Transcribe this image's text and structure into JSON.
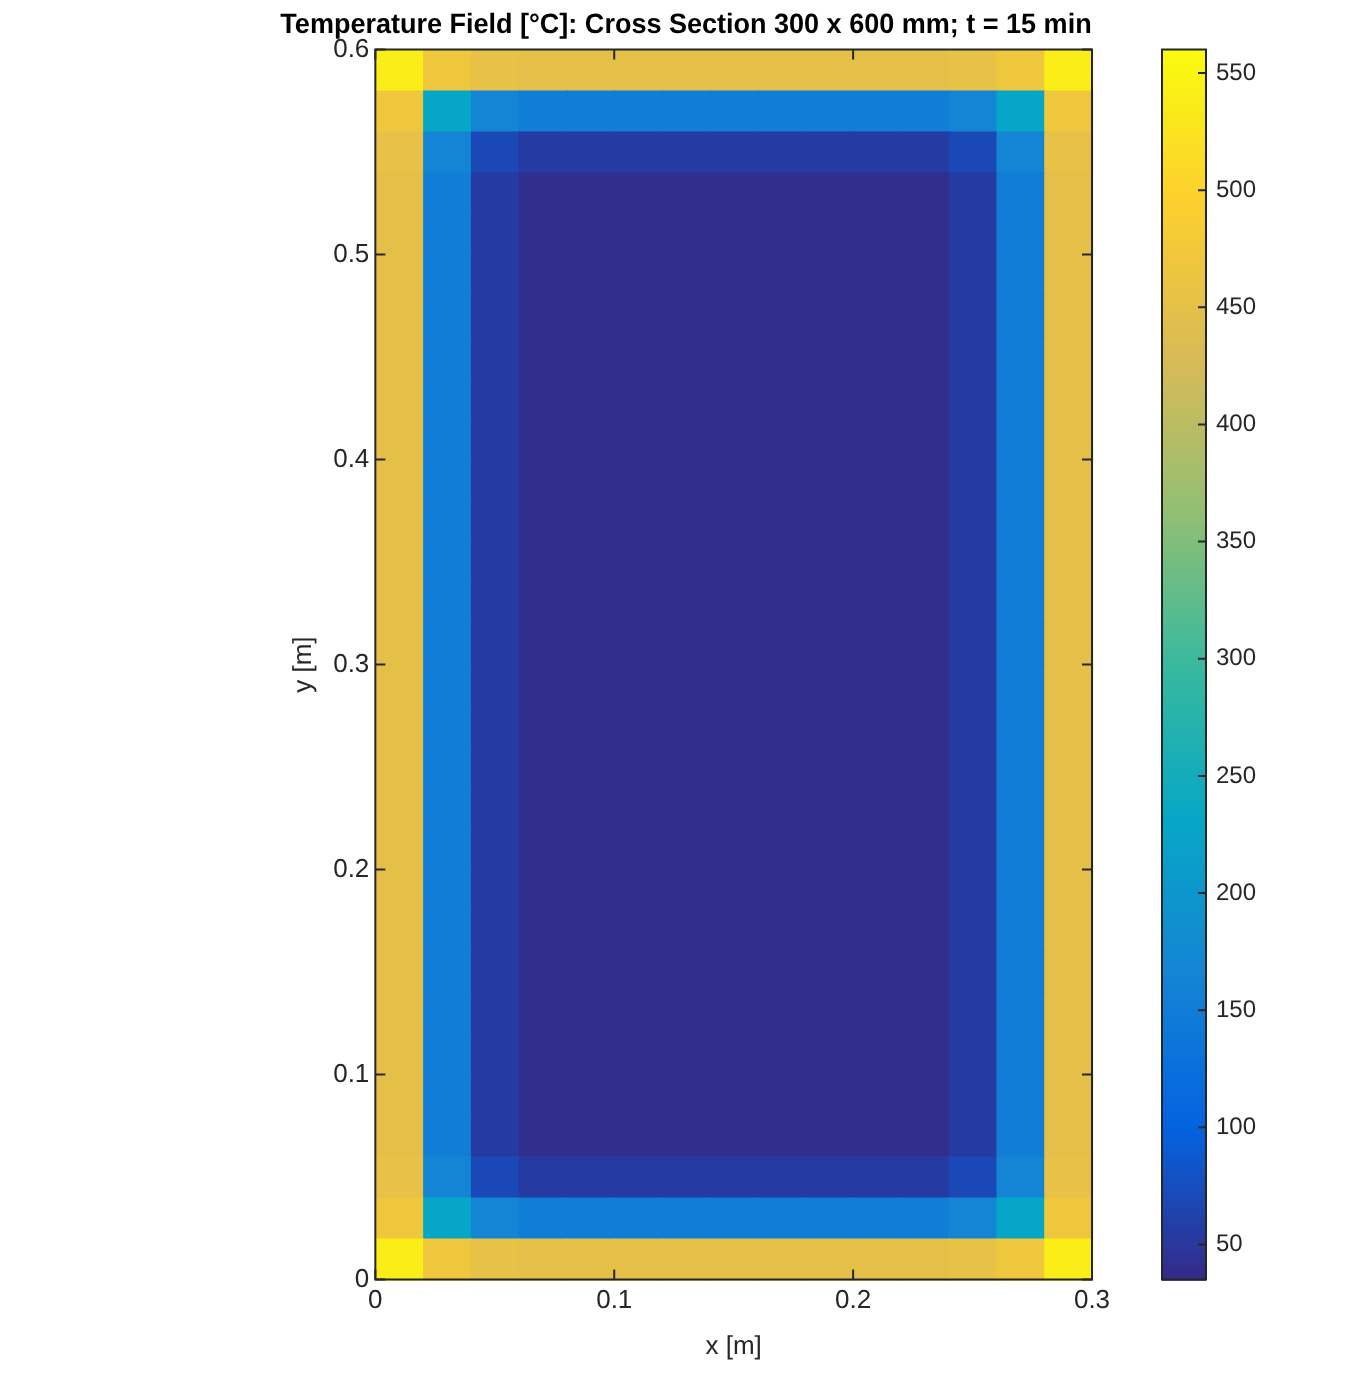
{
  "chart_data": {
    "type": "heatmap",
    "title": "Temperature Field [°C]: Cross Section 300 x 600 mm; t = 15 min",
    "xlabel": "x [m]",
    "ylabel": "y [m]",
    "x": [
      0.01,
      0.03,
      0.05,
      0.07,
      0.09,
      0.11,
      0.13,
      0.15,
      0.17,
      0.19,
      0.21,
      0.23,
      0.25,
      0.27,
      0.29
    ],
    "y": [
      0.59,
      0.57,
      0.55,
      0.53,
      0.51,
      0.49,
      0.47,
      0.45,
      0.43,
      0.41,
      0.39,
      0.37,
      0.35,
      0.33,
      0.31,
      0.29,
      0.27,
      0.25,
      0.23,
      0.21,
      0.19,
      0.17,
      0.15,
      0.13,
      0.11,
      0.09,
      0.07,
      0.05,
      0.03,
      0.01
    ],
    "xlim": [
      0,
      0.3
    ],
    "xticks": [
      0,
      0.1,
      0.2,
      0.3
    ],
    "ylim": [
      0,
      0.6
    ],
    "yticks": [
      0,
      0.1,
      0.2,
      0.3,
      0.4,
      0.5,
      0.6
    ],
    "clim": [
      35,
      560
    ],
    "cticks": [
      50,
      100,
      150,
      200,
      250,
      300,
      350,
      400,
      450,
      500,
      550
    ],
    "grid": false,
    "cells": [
      [
        540,
        470,
        455,
        450,
        450,
        450,
        450,
        450,
        450,
        450,
        450,
        450,
        455,
        470,
        540
      ],
      [
        470,
        230,
        165,
        150,
        150,
        150,
        150,
        150,
        150,
        150,
        150,
        150,
        165,
        230,
        470
      ],
      [
        455,
        165,
        70,
        55,
        55,
        55,
        55,
        55,
        55,
        55,
        55,
        55,
        70,
        165,
        455
      ],
      [
        450,
        150,
        55,
        40,
        40,
        40,
        40,
        40,
        40,
        40,
        40,
        40,
        55,
        150,
        450
      ],
      [
        450,
        150,
        55,
        40,
        40,
        40,
        40,
        40,
        40,
        40,
        40,
        40,
        55,
        150,
        450
      ],
      [
        450,
        150,
        55,
        40,
        40,
        40,
        40,
        40,
        40,
        40,
        40,
        40,
        55,
        150,
        450
      ],
      [
        450,
        150,
        55,
        40,
        40,
        40,
        40,
        40,
        40,
        40,
        40,
        40,
        55,
        150,
        450
      ],
      [
        450,
        150,
        55,
        40,
        40,
        40,
        40,
        40,
        40,
        40,
        40,
        40,
        55,
        150,
        450
      ],
      [
        450,
        150,
        55,
        40,
        40,
        40,
        40,
        40,
        40,
        40,
        40,
        40,
        55,
        150,
        450
      ],
      [
        450,
        150,
        55,
        40,
        40,
        40,
        40,
        40,
        40,
        40,
        40,
        40,
        55,
        150,
        450
      ],
      [
        450,
        150,
        55,
        40,
        40,
        40,
        40,
        40,
        40,
        40,
        40,
        40,
        55,
        150,
        450
      ],
      [
        450,
        150,
        55,
        40,
        40,
        40,
        40,
        40,
        40,
        40,
        40,
        40,
        55,
        150,
        450
      ],
      [
        450,
        150,
        55,
        40,
        40,
        40,
        40,
        40,
        40,
        40,
        40,
        40,
        55,
        150,
        450
      ],
      [
        450,
        150,
        55,
        40,
        40,
        40,
        40,
        40,
        40,
        40,
        40,
        40,
        55,
        150,
        450
      ],
      [
        450,
        150,
        55,
        40,
        40,
        40,
        40,
        40,
        40,
        40,
        40,
        40,
        55,
        150,
        450
      ],
      [
        450,
        150,
        55,
        40,
        40,
        40,
        40,
        40,
        40,
        40,
        40,
        40,
        55,
        150,
        450
      ],
      [
        450,
        150,
        55,
        40,
        40,
        40,
        40,
        40,
        40,
        40,
        40,
        40,
        55,
        150,
        450
      ],
      [
        450,
        150,
        55,
        40,
        40,
        40,
        40,
        40,
        40,
        40,
        40,
        40,
        55,
        150,
        450
      ],
      [
        450,
        150,
        55,
        40,
        40,
        40,
        40,
        40,
        40,
        40,
        40,
        40,
        55,
        150,
        450
      ],
      [
        450,
        150,
        55,
        40,
        40,
        40,
        40,
        40,
        40,
        40,
        40,
        40,
        55,
        150,
        450
      ],
      [
        450,
        150,
        55,
        40,
        40,
        40,
        40,
        40,
        40,
        40,
        40,
        40,
        55,
        150,
        450
      ],
      [
        450,
        150,
        55,
        40,
        40,
        40,
        40,
        40,
        40,
        40,
        40,
        40,
        55,
        150,
        450
      ],
      [
        450,
        150,
        55,
        40,
        40,
        40,
        40,
        40,
        40,
        40,
        40,
        40,
        55,
        150,
        450
      ],
      [
        450,
        150,
        55,
        40,
        40,
        40,
        40,
        40,
        40,
        40,
        40,
        40,
        55,
        150,
        450
      ],
      [
        450,
        150,
        55,
        40,
        40,
        40,
        40,
        40,
        40,
        40,
        40,
        40,
        55,
        150,
        450
      ],
      [
        450,
        150,
        55,
        40,
        40,
        40,
        40,
        40,
        40,
        40,
        40,
        40,
        55,
        150,
        450
      ],
      [
        450,
        150,
        55,
        40,
        40,
        40,
        40,
        40,
        40,
        40,
        40,
        40,
        55,
        150,
        450
      ],
      [
        455,
        165,
        70,
        55,
        55,
        55,
        55,
        55,
        55,
        55,
        55,
        55,
        70,
        165,
        455
      ],
      [
        470,
        230,
        165,
        150,
        150,
        150,
        150,
        150,
        150,
        150,
        150,
        150,
        165,
        230,
        470
      ],
      [
        540,
        470,
        455,
        450,
        450,
        450,
        450,
        450,
        450,
        450,
        450,
        450,
        455,
        470,
        540
      ]
    ]
  }
}
